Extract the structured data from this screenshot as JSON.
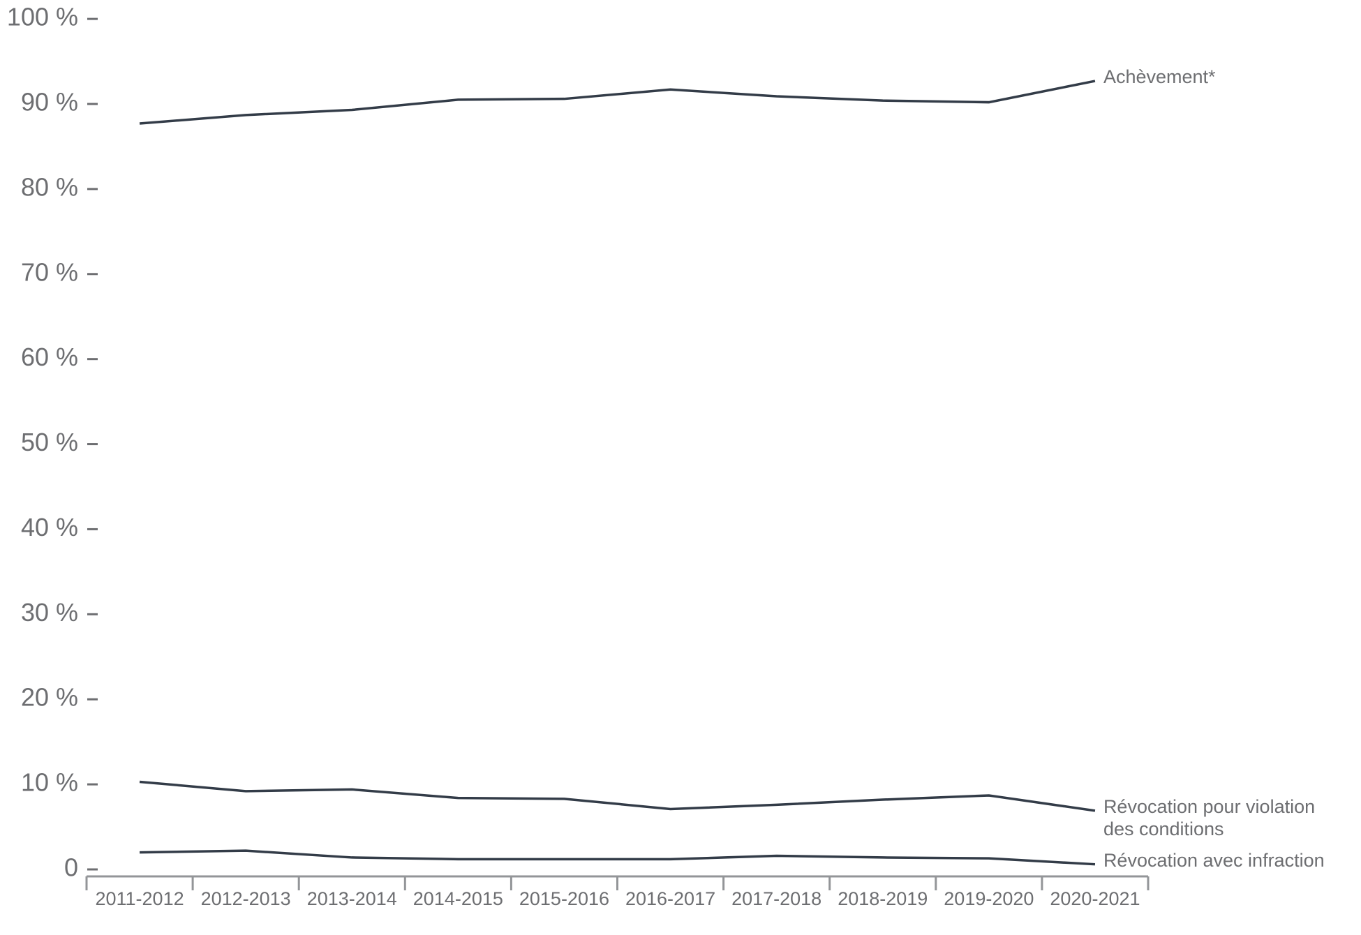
{
  "chart_data": {
    "type": "line",
    "categories": [
      "2011-2012",
      "2012-2013",
      "2013-2014",
      "2014-2015",
      "2015-2016",
      "2016-2017",
      "2017-2018",
      "2018-2019",
      "2019-2020",
      "2020-2021"
    ],
    "series": [
      {
        "name": "Achèvement*",
        "color": "#333c48",
        "values": [
          87.7,
          88.7,
          89.3,
          90.5,
          90.6,
          91.7,
          90.9,
          90.4,
          90.2,
          92.7
        ]
      },
      {
        "name": "Révocation pour violation des conditions",
        "color": "#333c48",
        "values": [
          10.3,
          9.2,
          9.4,
          8.4,
          8.3,
          7.1,
          7.6,
          8.2,
          8.7,
          6.9
        ]
      },
      {
        "name": "Révocation avec infraction",
        "color": "#333c48",
        "values": [
          2.0,
          2.2,
          1.4,
          1.2,
          1.2,
          1.2,
          1.6,
          1.4,
          1.3,
          0.6
        ]
      }
    ],
    "ylim": [
      0,
      100
    ],
    "yticks": [
      0,
      {
        "value": 10,
        "label": "10 %"
      },
      {
        "value": 20,
        "label": "20 %"
      },
      {
        "value": 30,
        "label": "30 %"
      },
      {
        "value": 40,
        "label": "40 %"
      },
      {
        "value": 50,
        "label": "50 %"
      },
      {
        "value": 60,
        "label": "60 %"
      },
      {
        "value": 70,
        "label": "70 %"
      },
      {
        "value": 80,
        "label": "80 %"
      },
      {
        "value": 90,
        "label": "90 %"
      },
      {
        "value": 100,
        "label": "100 %"
      }
    ],
    "grid": false
  }
}
